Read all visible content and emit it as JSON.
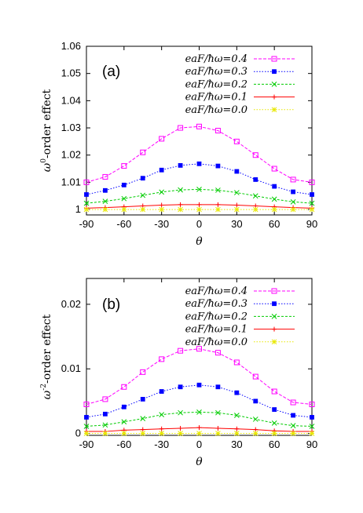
{
  "chart_data": [
    {
      "type": "line",
      "panel_label": "(a)",
      "xlabel": "θ",
      "ylabel_base": "ω",
      "ylabel_sup": "0",
      "ylabel_rest": "-order effect",
      "xlim": [
        -90,
        90
      ],
      "ylim": [
        0.998,
        1.06
      ],
      "xticks": [
        -90,
        -60,
        -30,
        0,
        30,
        60,
        90
      ],
      "xtick_labels": [
        "-90",
        "-60",
        "-30",
        "0",
        "30",
        "60",
        "90"
      ],
      "yticks": [
        1,
        1.01,
        1.02,
        1.03,
        1.04,
        1.05,
        1.06
      ],
      "ytick_labels": [
        "1",
        "1.01",
        "1.02",
        "1.03",
        "1.04",
        "1.05",
        "1.06"
      ],
      "x": [
        -90,
        -75,
        -60,
        -45,
        -30,
        -15,
        0,
        15,
        30,
        45,
        60,
        75,
        90
      ],
      "series": [
        {
          "name": "eaF/ħω=0.4",
          "color": "#ff00ff",
          "marker": "square",
          "dash": "4,2",
          "values": [
            1.01,
            1.012,
            1.016,
            1.021,
            1.026,
            1.03,
            1.0305,
            1.029,
            1.025,
            1.02,
            1.015,
            1.011,
            1.01
          ]
        },
        {
          "name": "eaF/ħω=0.3",
          "color": "#0000ff",
          "marker": "filled-square",
          "dash": "1.5,2",
          "values": [
            1.0055,
            1.007,
            1.009,
            1.0115,
            1.0145,
            1.0162,
            1.0168,
            1.016,
            1.014,
            1.011,
            1.0085,
            1.0065,
            1.0055
          ]
        },
        {
          "name": "eaF/ħω=0.2",
          "color": "#00cc00",
          "marker": "x",
          "dash": "3,2",
          "values": [
            1.0023,
            1.003,
            1.004,
            1.0052,
            1.0064,
            1.0072,
            1.0074,
            1.0071,
            1.0062,
            1.005,
            1.0038,
            1.0028,
            1.0023
          ]
        },
        {
          "name": "eaF/ħω=0.1",
          "color": "#ff0000",
          "marker": "plus",
          "dash": "",
          "values": [
            1.0005,
            1.0007,
            1.001,
            1.0013,
            1.0016,
            1.0018,
            1.0018,
            1.0018,
            1.0016,
            1.0013,
            1.001,
            1.0007,
            1.0005
          ]
        },
        {
          "name": "eaF/ħω=0.0",
          "color": "#e8e800",
          "marker": "star",
          "dash": "1.5,2",
          "values": [
            1.0,
            1.0,
            1.0,
            1.0,
            1.0,
            1.0,
            1.0,
            1.0,
            1.0,
            1.0,
            1.0,
            1.0,
            1.0
          ]
        }
      ],
      "legend_position": "top-right",
      "grid": false
    },
    {
      "type": "line",
      "panel_label": "(b)",
      "xlabel": "θ",
      "ylabel_base": "ω",
      "ylabel_sup": "-2",
      "ylabel_rest": "-order effect",
      "xlim": [
        -90,
        90
      ],
      "ylim": [
        -0.0003,
        0.024
      ],
      "xticks": [
        -90,
        -60,
        -30,
        0,
        30,
        60,
        90
      ],
      "xtick_labels": [
        "-90",
        "-60",
        "-30",
        "0",
        "30",
        "60",
        "90"
      ],
      "yticks": [
        0,
        0.01,
        0.02
      ],
      "ytick_labels": [
        "0",
        "0.01",
        "0.02"
      ],
      "x": [
        -90,
        -75,
        -60,
        -45,
        -30,
        -15,
        0,
        15,
        30,
        45,
        60,
        75,
        90
      ],
      "series": [
        {
          "name": "eaF/ħω=0.4",
          "color": "#ff00ff",
          "marker": "square",
          "dash": "4,2",
          "values": [
            0.0045,
            0.0053,
            0.0072,
            0.0095,
            0.0115,
            0.0128,
            0.0131,
            0.0125,
            0.011,
            0.0088,
            0.0065,
            0.0048,
            0.0045
          ]
        },
        {
          "name": "eaF/ħω=0.3",
          "color": "#0000ff",
          "marker": "filled-square",
          "dash": "1.5,2",
          "values": [
            0.0025,
            0.003,
            0.0041,
            0.0053,
            0.0065,
            0.0072,
            0.0075,
            0.0072,
            0.0063,
            0.005,
            0.0037,
            0.0028,
            0.0025
          ]
        },
        {
          "name": "eaF/ħω=0.2",
          "color": "#00cc00",
          "marker": "x",
          "dash": "3,2",
          "values": [
            0.0011,
            0.0013,
            0.0018,
            0.0023,
            0.0029,
            0.0032,
            0.0033,
            0.0032,
            0.0028,
            0.0022,
            0.0016,
            0.0012,
            0.0011
          ]
        },
        {
          "name": "eaF/ħω=0.1",
          "color": "#ff0000",
          "marker": "plus",
          "dash": "",
          "values": [
            0.0003,
            0.0003,
            0.0005,
            0.0006,
            0.0007,
            0.0008,
            0.0009,
            0.0008,
            0.0007,
            0.0006,
            0.0004,
            0.0003,
            0.0003
          ]
        },
        {
          "name": "eaF/ħω=0.0",
          "color": "#e8e800",
          "marker": "star",
          "dash": "1.5,2",
          "values": [
            0,
            0,
            0,
            0,
            0,
            0,
            0,
            0,
            0,
            0,
            0,
            0,
            0
          ]
        }
      ],
      "legend_position": "top-right",
      "grid": false
    }
  ]
}
